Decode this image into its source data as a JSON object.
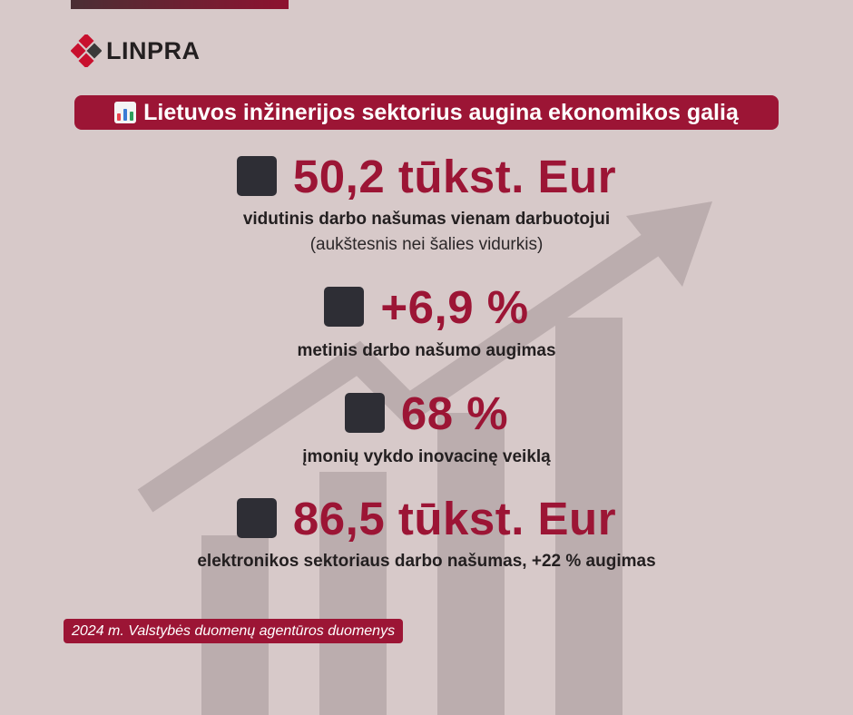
{
  "brand": {
    "name": "LINPRA"
  },
  "header": {
    "title": "Lietuvos inžinerijos sektorius augina ekonomikos galią",
    "icon": "bar-chart-icon"
  },
  "stats": [
    {
      "value": "50,2 tūkst. Eur",
      "description": "vidutinis darbo našumas vienam darbuotojui",
      "note": "(aukštesnis nei šalies vidurkis)"
    },
    {
      "value": "+6,9 %",
      "description": "metinis darbo našumo augimas"
    },
    {
      "value": "68 %",
      "description": "įmonių vykdo inovacinę veiklą"
    },
    {
      "value": "86,5 tūkst. Eur",
      "description": "elektronikos sektoriaus darbo našumas, +22 % augimas"
    }
  ],
  "source": "2024 m. Valstybės duomenų agentūros duomenys",
  "colors": {
    "background": "#d7c9c9",
    "accent": "#9c1535",
    "dark": "#2e2e35",
    "text": "#231f20"
  }
}
